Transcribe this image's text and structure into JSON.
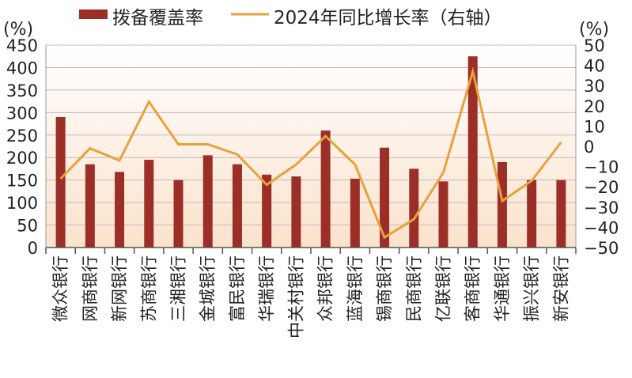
{
  "chart_data": {
    "type": "bar+line",
    "categories": [
      "微众银行",
      "网商银行",
      "新网银行",
      "苏商银行",
      "三湘银行",
      "金城银行",
      "富民银行",
      "华瑞银行",
      "中关村银行",
      "众邦银行",
      "蓝海银行",
      "锡商银行",
      "民商银行",
      "亿联银行",
      "客商银行",
      "华通银行",
      "振兴银行",
      "新安银行"
    ],
    "series": [
      {
        "name": "拨备覆盖率",
        "type": "bar",
        "axis": "left",
        "values": [
          290,
          185,
          168,
          195,
          150,
          205,
          185,
          162,
          158,
          260,
          153,
          222,
          175,
          147,
          425,
          190,
          150,
          150
        ]
      },
      {
        "name": "2024年同比增长率（右轴）",
        "type": "line",
        "axis": "right",
        "values": [
          -16,
          -1,
          -7,
          22,
          1,
          1,
          -4,
          -19,
          -9,
          5,
          -9,
          -45,
          -36,
          -13,
          37,
          -27,
          -17,
          2
        ]
      }
    ],
    "y_left": {
      "unit": "(%)",
      "ylim": [
        0,
        450
      ],
      "ticks": [
        0,
        50,
        100,
        150,
        200,
        250,
        300,
        350,
        400,
        450
      ]
    },
    "y_right": {
      "unit": "(%)",
      "ylim": [
        -50,
        50
      ],
      "ticks": [
        -50,
        -40,
        -30,
        -20,
        -10,
        0,
        10,
        20,
        30,
        40,
        50
      ]
    },
    "legend": "top",
    "colors": {
      "bar": "#9c2e28",
      "line": "#e8a13c",
      "grid": "#bbbbbb",
      "bg_top": "#ffffff",
      "bg_bottom": "#fbe2cc"
    }
  }
}
